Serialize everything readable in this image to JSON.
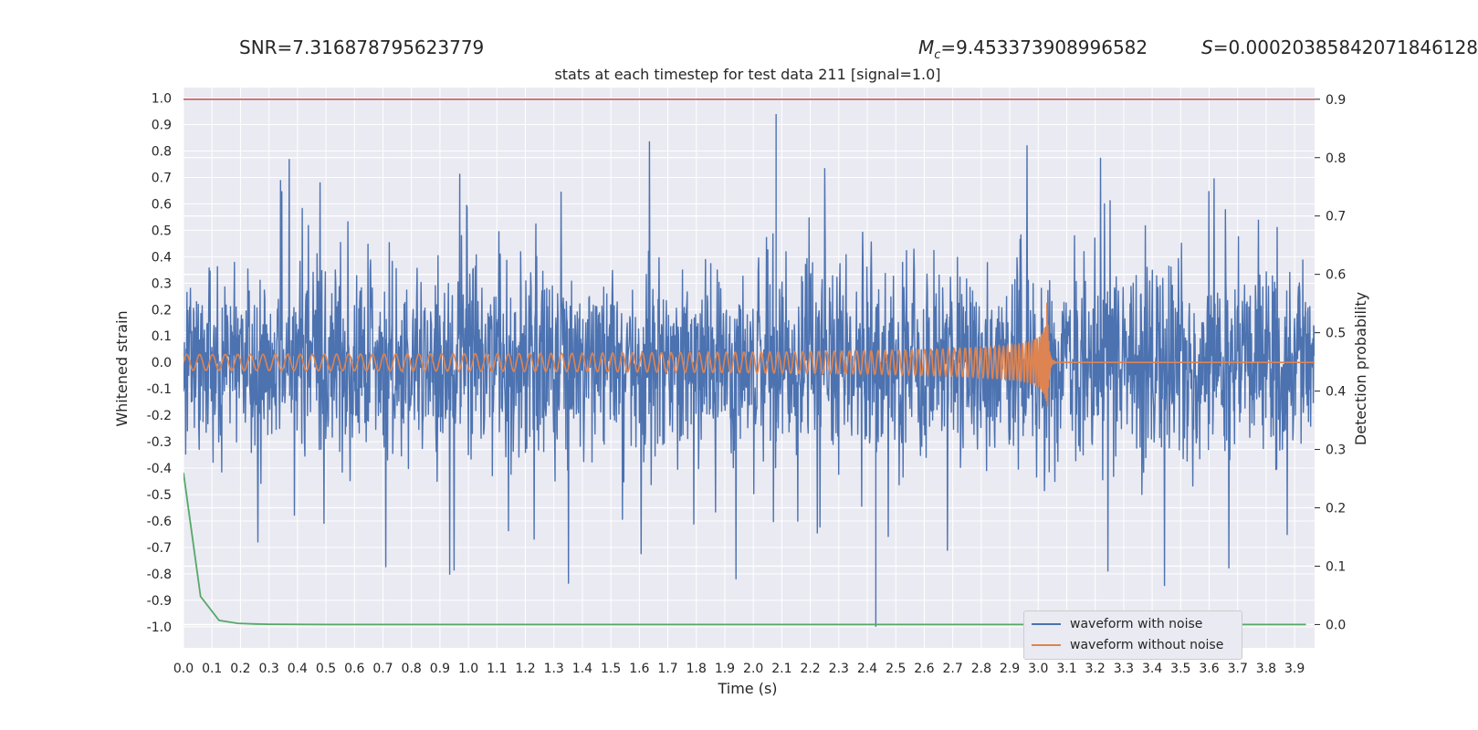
{
  "header": {
    "snr": "SNR=7.316878795623779",
    "mc_prefix": "M",
    "mc_sub": "c",
    "mc_value": "=9.453373908996582",
    "s_prefix": "S",
    "s_value": "=0.00020385842071846128"
  },
  "chart_data": {
    "type": "line",
    "title": "stats at each timestep for test data 211 [signal=1.0]",
    "xlabel": "Time (s)",
    "ylabel_left": "Whitened strain",
    "ylabel_right": "Detection probability",
    "xlim": [
      0.0,
      3.97
    ],
    "ylim_left": [
      -1.08,
      1.04
    ],
    "ylim_right": [
      -0.04,
      0.92
    ],
    "x_ticks": [
      "0.0",
      "0.1",
      "0.2",
      "0.3",
      "0.4",
      "0.5",
      "0.6",
      "0.7",
      "0.8",
      "0.9",
      "1.0",
      "1.1",
      "1.2",
      "1.3",
      "1.4",
      "1.5",
      "1.6",
      "1.7",
      "1.8",
      "1.9",
      "2.0",
      "2.1",
      "2.2",
      "2.3",
      "2.4",
      "2.5",
      "2.6",
      "2.7",
      "2.8",
      "2.9",
      "3.0",
      "3.1",
      "3.2",
      "3.3",
      "3.4",
      "3.5",
      "3.6",
      "3.7",
      "3.8",
      "3.9"
    ],
    "y_ticks_left": [
      "1.0",
      "0.9",
      "0.8",
      "0.7",
      "0.6",
      "0.5",
      "0.4",
      "0.3",
      "0.2",
      "0.1",
      "0.0",
      "-0.1",
      "-0.2",
      "-0.3",
      "-0.4",
      "-0.5",
      "-0.6",
      "-0.7",
      "-0.8",
      "-0.9",
      "-1.0"
    ],
    "y_ticks_right": [
      "0.9",
      "0.8",
      "0.7",
      "0.6",
      "0.5",
      "0.4",
      "0.3",
      "0.2",
      "0.1",
      "0.0"
    ],
    "grid": true,
    "legend_position": "lower-right",
    "threshold": {
      "axis": "right",
      "value": 0.9,
      "color": "#c44e52"
    },
    "series": [
      {
        "name": "waveform with noise",
        "axis": "left",
        "color": "#4c72b0",
        "description_samples": {
          "seed": 211,
          "envelope": 0.95,
          "min": -1.0,
          "max": 0.94
        }
      },
      {
        "name": "waveform without noise",
        "axis": "left",
        "color": "#dd8452",
        "chirp": {
          "merger_time": 3.03,
          "start_freq_hz": 22,
          "initial_amplitude": 0.03,
          "peak_amplitude": 0.27
        }
      },
      {
        "name": "",
        "axis": "right",
        "color": "#55a868",
        "x": [
          0.0,
          0.06,
          0.125,
          0.19,
          0.25,
          0.3,
          0.5,
          1.0,
          2.0,
          3.0,
          3.94
        ],
        "y": [
          0.26,
          0.048,
          0.007,
          0.002,
          0.001,
          0.0005,
          0.0,
          0.0,
          0.0,
          0.0,
          0.0
        ]
      }
    ]
  },
  "colors": {
    "background": "#eaeaf2",
    "grid": "#ffffff"
  }
}
